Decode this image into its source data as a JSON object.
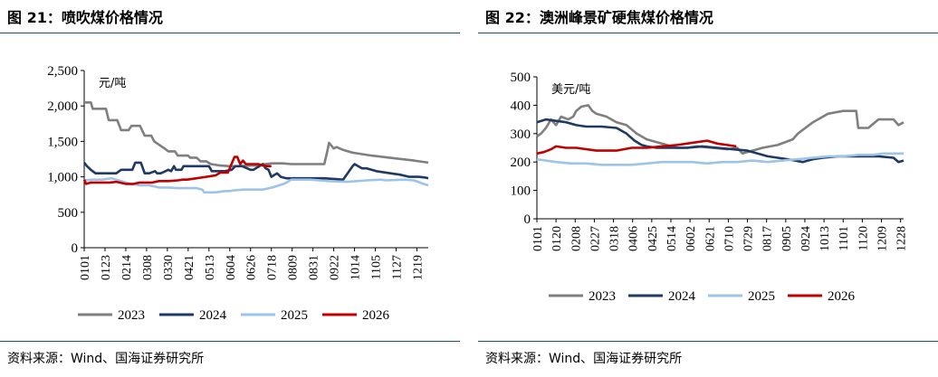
{
  "colors": {
    "s2023": "#7f7f7f",
    "s2024": "#1f3864",
    "s2025": "#9dc3e6",
    "s2026": "#c00000",
    "rule": "#1f4e79"
  },
  "left": {
    "title": "图 21：喷吹煤价格情况",
    "source": "资料来源：Wind、国海证券研究所"
  },
  "right": {
    "title": "图 22：澳洲峰景矿硬焦煤价格情况",
    "source": "资料来源：Wind、国海证券研究所"
  },
  "chart_data": [
    {
      "type": "line",
      "unit": "元/吨",
      "ylim": [
        0,
        2500
      ],
      "yticks": [
        0,
        500,
        1000,
        1500,
        2000,
        2500
      ],
      "ytick_labels": [
        "0",
        "500",
        "1,000",
        "1,500",
        "2,000",
        "2,500"
      ],
      "xlim": [
        1,
        365
      ],
      "x_ticks": [
        1,
        23,
        45,
        67,
        89,
        111,
        133,
        155,
        177,
        199,
        221,
        243,
        265,
        287,
        309,
        331,
        353
      ],
      "x_tick_labels": [
        "0101",
        "0123",
        "0214",
        "0308",
        "0330",
        "0421",
        "0513",
        "0604",
        "0626",
        "0718",
        "0809",
        "0831",
        "0922",
        "1014",
        "1105",
        "1127",
        "1219"
      ],
      "legend": "bottom",
      "series": [
        {
          "name": "2023",
          "color_key": "s2023",
          "x": [
            1,
            8,
            10,
            24,
            27,
            36,
            40,
            48,
            51,
            60,
            65,
            72,
            75,
            86,
            90,
            97,
            100,
            111,
            113,
            120,
            124,
            130,
            135,
            145,
            155,
            165,
            178,
            185,
            192,
            200,
            211,
            220,
            240,
            255,
            258,
            260,
            265,
            268,
            275,
            285,
            305,
            330,
            350,
            365
          ],
          "y": [
            2050,
            2050,
            1960,
            1960,
            1800,
            1800,
            1660,
            1660,
            1720,
            1720,
            1580,
            1580,
            1500,
            1400,
            1360,
            1360,
            1300,
            1300,
            1270,
            1270,
            1220,
            1220,
            1180,
            1160,
            1150,
            1150,
            1160,
            1160,
            1180,
            1190,
            1190,
            1180,
            1180,
            1180,
            1350,
            1480,
            1400,
            1420,
            1380,
            1340,
            1300,
            1260,
            1230,
            1200
          ]
        },
        {
          "name": "2024",
          "color_key": "s2024",
          "x": [
            1,
            4,
            8,
            13,
            18,
            35,
            40,
            52,
            55,
            61,
            65,
            70,
            76,
            78,
            82,
            87,
            90,
            93,
            96,
            98,
            104,
            106,
            111,
            133,
            136,
            150,
            157,
            161,
            168,
            177,
            180,
            190,
            193,
            196,
            199,
            205,
            209,
            215,
            240,
            255,
            275,
            285,
            287,
            295,
            300,
            310,
            325,
            335,
            345,
            355,
            362,
            365
          ],
          "y": [
            1200,
            1150,
            1100,
            1050,
            1050,
            1050,
            1100,
            1100,
            1200,
            1200,
            1050,
            1050,
            1080,
            1050,
            1050,
            1080,
            1100,
            1080,
            1150,
            1100,
            1100,
            1150,
            1150,
            1150,
            1080,
            1080,
            1100,
            1150,
            1150,
            1100,
            1100,
            1180,
            1120,
            1100,
            1000,
            1050,
            1000,
            980,
            980,
            980,
            960,
            1150,
            1180,
            1120,
            1120,
            1080,
            1050,
            1030,
            1000,
            1000,
            990,
            980
          ]
        },
        {
          "name": "2025",
          "color_key": "s2025",
          "x": [
            1,
            10,
            20,
            30,
            40,
            50,
            60,
            70,
            80,
            90,
            100,
            110,
            120,
            126,
            128,
            140,
            150,
            155,
            160,
            170,
            190,
            200,
            212,
            215,
            220,
            240,
            260,
            280,
            300,
            315,
            320,
            340,
            350,
            360,
            365
          ],
          "y": [
            950,
            960,
            960,
            980,
            940,
            900,
            880,
            880,
            850,
            850,
            840,
            840,
            840,
            820,
            780,
            780,
            800,
            800,
            810,
            820,
            820,
            850,
            900,
            920,
            960,
            960,
            940,
            930,
            950,
            960,
            950,
            960,
            950,
            900,
            880
          ]
        },
        {
          "name": "2026",
          "color_key": "s2026",
          "x": [
            1,
            3,
            8,
            15,
            28,
            35,
            45,
            53,
            60,
            66,
            73,
            80,
            90,
            100,
            105,
            110,
            120,
            125,
            130,
            135,
            140,
            145,
            150,
            153,
            160,
            163,
            166,
            169,
            172,
            180,
            185,
            190,
            195,
            199
          ],
          "y": [
            960,
            900,
            920,
            920,
            920,
            930,
            900,
            900,
            920,
            920,
            920,
            940,
            940,
            950,
            960,
            960,
            980,
            990,
            1000,
            1010,
            1020,
            1060,
            1060,
            1060,
            1280,
            1280,
            1180,
            1230,
            1180,
            1180,
            1180,
            1160,
            1150,
            1150
          ]
        }
      ]
    },
    {
      "type": "line",
      "unit": "美元/吨",
      "ylim": [
        0,
        500
      ],
      "yticks": [
        0,
        100,
        200,
        300,
        400,
        500
      ],
      "ytick_labels": [
        "0",
        "100",
        "200",
        "300",
        "400",
        "500"
      ],
      "xlim": [
        1,
        365
      ],
      "x_ticks": [
        1,
        20,
        39,
        58,
        77,
        96,
        115,
        134,
        153,
        172,
        191,
        210,
        229,
        248,
        267,
        286,
        305,
        324,
        343,
        362
      ],
      "x_tick_labels": [
        "0101",
        "0120",
        "0208",
        "0227",
        "0318",
        "0406",
        "0425",
        "0514",
        "0602",
        "0621",
        "0710",
        "0729",
        "0817",
        "0905",
        "0924",
        "1013",
        "1101",
        "1120",
        "1209",
        "1228"
      ],
      "legend": "bottom",
      "series": [
        {
          "name": "2023",
          "color_key": "s2023",
          "x": [
            1,
            5,
            10,
            15,
            20,
            25,
            32,
            37,
            40,
            45,
            52,
            56,
            60,
            70,
            80,
            90,
            100,
            110,
            120,
            130,
            140,
            150,
            160,
            175,
            190,
            200,
            205,
            215,
            225,
            240,
            255,
            260,
            275,
            290,
            305,
            315,
            318,
            320,
            330,
            340,
            355,
            360,
            365
          ],
          "y": [
            290,
            300,
            320,
            350,
            330,
            360,
            350,
            360,
            380,
            395,
            400,
            380,
            370,
            360,
            340,
            330,
            300,
            280,
            270,
            260,
            250,
            250,
            255,
            250,
            245,
            250,
            230,
            240,
            250,
            260,
            280,
            300,
            340,
            370,
            380,
            380,
            380,
            320,
            320,
            350,
            350,
            330,
            340
          ]
        },
        {
          "name": "2024",
          "color_key": "s2024",
          "x": [
            1,
            10,
            20,
            30,
            40,
            50,
            65,
            80,
            90,
            98,
            105,
            110,
            120,
            135,
            150,
            165,
            180,
            195,
            210,
            230,
            250,
            265,
            275,
            285,
            300,
            320,
            340,
            355,
            360,
            365
          ],
          "y": [
            340,
            350,
            345,
            340,
            330,
            325,
            325,
            320,
            300,
            275,
            260,
            255,
            250,
            250,
            250,
            255,
            250,
            245,
            240,
            220,
            210,
            200,
            210,
            215,
            220,
            220,
            220,
            215,
            200,
            205
          ]
        },
        {
          "name": "2025",
          "color_key": "s2025",
          "x": [
            1,
            10,
            20,
            35,
            50,
            65,
            80,
            95,
            110,
            125,
            140,
            155,
            170,
            185,
            200,
            215,
            230,
            245,
            260,
            275,
            290,
            305,
            320,
            335,
            345,
            355,
            365
          ],
          "y": [
            210,
            205,
            200,
            195,
            195,
            190,
            190,
            190,
            195,
            200,
            200,
            200,
            195,
            200,
            200,
            205,
            200,
            205,
            210,
            215,
            220,
            220,
            225,
            225,
            230,
            230,
            230
          ]
        },
        {
          "name": "2026",
          "color_key": "s2026",
          "x": [
            1,
            8,
            15,
            20,
            30,
            40,
            60,
            80,
            95,
            110,
            125,
            140,
            150,
            160,
            170,
            180,
            190,
            199
          ],
          "y": [
            230,
            235,
            245,
            255,
            250,
            250,
            240,
            240,
            250,
            250,
            255,
            260,
            265,
            270,
            275,
            265,
            260,
            255
          ]
        }
      ]
    }
  ]
}
